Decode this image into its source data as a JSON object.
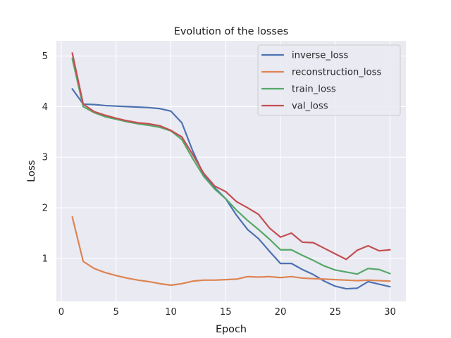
{
  "chart_data": {
    "type": "line",
    "title": "Evolution of the losses",
    "xlabel": "Epoch",
    "ylabel": "Loss",
    "xlim": [
      -0.45,
      31.45
    ],
    "ylim": [
      0.15,
      5.3
    ],
    "xticks": [
      0,
      5,
      10,
      15,
      20,
      25,
      30
    ],
    "yticks": [
      1,
      2,
      3,
      4,
      5
    ],
    "grid": true,
    "legend_position": "top-right",
    "x": [
      1,
      2,
      3,
      4,
      5,
      6,
      7,
      8,
      9,
      10,
      11,
      12,
      13,
      14,
      15,
      16,
      17,
      18,
      19,
      20,
      21,
      22,
      23,
      24,
      25,
      26,
      27,
      28,
      29,
      30
    ],
    "series": [
      {
        "name": "inverse_loss",
        "color": "#4c72b0",
        "values": [
          4.35,
          4.05,
          4.04,
          4.02,
          4.01,
          4.0,
          3.99,
          3.98,
          3.96,
          3.91,
          3.68,
          3.12,
          2.65,
          2.4,
          2.18,
          1.85,
          1.57,
          1.39,
          1.14,
          0.9,
          0.9,
          0.78,
          0.68,
          0.55,
          0.45,
          0.4,
          0.41,
          0.54,
          0.49,
          0.44
        ]
      },
      {
        "name": "reconstruction_loss",
        "color": "#dd8452",
        "values": [
          1.82,
          0.94,
          0.8,
          0.72,
          0.66,
          0.61,
          0.57,
          0.54,
          0.5,
          0.47,
          0.5,
          0.55,
          0.57,
          0.57,
          0.58,
          0.59,
          0.64,
          0.63,
          0.64,
          0.62,
          0.64,
          0.61,
          0.6,
          0.59,
          0.58,
          0.57,
          0.56,
          0.57,
          0.56,
          0.55
        ]
      },
      {
        "name": "train_loss",
        "color": "#55a868",
        "values": [
          4.95,
          4.0,
          3.88,
          3.8,
          3.75,
          3.7,
          3.66,
          3.63,
          3.59,
          3.52,
          3.35,
          2.97,
          2.62,
          2.37,
          2.18,
          1.95,
          1.75,
          1.57,
          1.38,
          1.17,
          1.17,
          1.06,
          0.96,
          0.85,
          0.77,
          0.73,
          0.69,
          0.8,
          0.78,
          0.7
        ]
      },
      {
        "name": "val_loss",
        "color": "#c44e52",
        "values": [
          5.06,
          4.05,
          3.9,
          3.83,
          3.77,
          3.72,
          3.68,
          3.66,
          3.62,
          3.53,
          3.4,
          3.05,
          2.68,
          2.43,
          2.32,
          2.12,
          2.0,
          1.87,
          1.6,
          1.42,
          1.5,
          1.32,
          1.31,
          1.2,
          1.09,
          0.98,
          1.16,
          1.25,
          1.15,
          1.17
        ]
      }
    ]
  },
  "style": {
    "background": "#ffffff",
    "plot_background": "#eaeaf2",
    "grid_color": "#ffffff",
    "legend_background": "#eaeaf2",
    "legend_border": "#cccccc"
  }
}
